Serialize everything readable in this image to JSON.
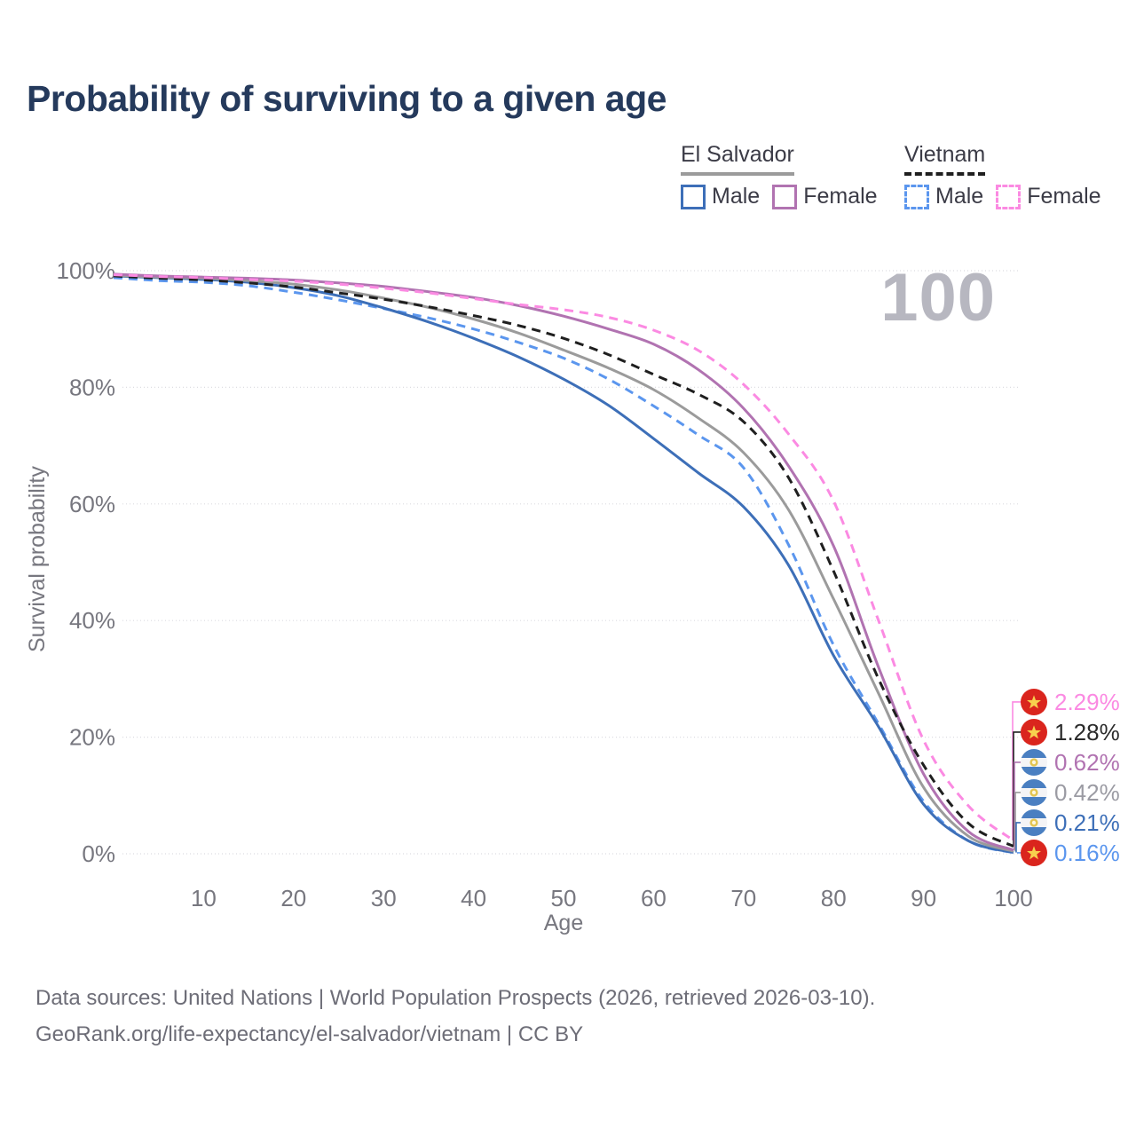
{
  "title": "Probability of surviving to a given age",
  "watermark": "100",
  "legend": {
    "groups": [
      {
        "label": "El Salvador",
        "underline": {
          "color": "#9b9b9b",
          "dashed": false
        },
        "items": [
          {
            "label": "Male",
            "color": "#3d6fb8",
            "dashed": false
          },
          {
            "label": "Female",
            "color": "#b173b1",
            "dashed": false
          }
        ]
      },
      {
        "label": "Vietnam",
        "underline": {
          "color": "#1f1f1f",
          "dashed": true
        },
        "items": [
          {
            "label": "Male",
            "color": "#5b96ee",
            "dashed": true
          },
          {
            "label": "Female",
            "color": "#fb8ae2",
            "dashed": true
          }
        ]
      }
    ]
  },
  "chart_data": {
    "type": "line",
    "title": "Probability of surviving to a given age",
    "xlabel": "Age",
    "ylabel": "Survival probability",
    "xlim": [
      0,
      100
    ],
    "ylim": [
      0,
      100
    ],
    "grid": true,
    "legend_position": "top-right",
    "x": [
      0,
      5,
      10,
      15,
      20,
      25,
      30,
      35,
      40,
      45,
      50,
      55,
      60,
      65,
      70,
      75,
      80,
      85,
      90,
      95,
      100
    ],
    "xticks": [
      {
        "value": 10,
        "label": "10"
      },
      {
        "value": 20,
        "label": "20"
      },
      {
        "value": 30,
        "label": "30"
      },
      {
        "value": 40,
        "label": "40"
      },
      {
        "value": 50,
        "label": "50"
      },
      {
        "value": 60,
        "label": "60"
      },
      {
        "value": 70,
        "label": "70"
      },
      {
        "value": 80,
        "label": "80"
      },
      {
        "value": 90,
        "label": "90"
      },
      {
        "value": 100,
        "label": "100"
      }
    ],
    "yticks": [
      {
        "value": 0,
        "label": "0%"
      },
      {
        "value": 20,
        "label": "20%"
      },
      {
        "value": 40,
        "label": "40%"
      },
      {
        "value": 60,
        "label": "60%"
      },
      {
        "value": 80,
        "label": "80%"
      },
      {
        "value": 100,
        "label": "100%"
      }
    ],
    "series": [
      {
        "name": "Vietnam Female",
        "flag": "vn",
        "dashed": true,
        "color": "#fb8ae2",
        "label_color": "#fb8ae2",
        "end_label": "2.29%",
        "values": [
          99.3,
          99.0,
          98.8,
          98.5,
          98.2,
          97.7,
          97.0,
          96.2,
          95.2,
          94.2,
          93.3,
          92.0,
          89.8,
          86.3,
          80.5,
          72.0,
          60.5,
          40.0,
          19.5,
          8.2,
          2.29
        ]
      },
      {
        "name": "Vietnam Both sexes",
        "flag": "vn",
        "dashed": true,
        "color": "#1f1f1f",
        "label_color": "#2b2b2b",
        "end_label": "1.28%",
        "values": [
          99.1,
          98.7,
          98.4,
          97.9,
          97.2,
          96.2,
          95.1,
          93.8,
          92.3,
          90.6,
          88.4,
          85.6,
          82.2,
          78.8,
          74.1,
          64.5,
          48.5,
          30.0,
          15.2,
          5.2,
          1.28
        ]
      },
      {
        "name": "El Salvador Female",
        "flag": "sv",
        "dashed": false,
        "color": "#b173b1",
        "label_color": "#b173b1",
        "end_label": "0.62%",
        "values": [
          99.4,
          99.1,
          98.9,
          98.7,
          98.4,
          97.9,
          97.3,
          96.4,
          95.4,
          94.0,
          92.2,
          90.0,
          87.4,
          83.0,
          76.4,
          66.5,
          52.8,
          32.0,
          13.7,
          3.8,
          0.62
        ]
      },
      {
        "name": "El Salvador Both sexes",
        "flag": "sv",
        "dashed": false,
        "color": "#9b9b9b",
        "label_color": "#9b9ba3",
        "end_label": "0.42%",
        "values": [
          99.2,
          98.9,
          98.7,
          98.3,
          97.7,
          96.7,
          95.3,
          93.7,
          91.7,
          89.3,
          86.4,
          83.3,
          79.6,
          74.7,
          68.8,
          59.0,
          43.7,
          27.5,
          11.4,
          3.0,
          0.42
        ]
      },
      {
        "name": "El Salvador Male",
        "flag": "sv",
        "dashed": false,
        "color": "#3d6fb8",
        "label_color": "#3d6fb8",
        "end_label": "0.21%",
        "values": [
          99.1,
          98.8,
          98.5,
          98.0,
          97.1,
          95.7,
          93.6,
          91.2,
          88.4,
          85.2,
          81.4,
          76.9,
          71.2,
          65.3,
          59.5,
          49.5,
          34.0,
          21.8,
          8.5,
          2.2,
          0.21
        ]
      },
      {
        "name": "Vietnam Male",
        "flag": "vn",
        "dashed": true,
        "color": "#5b96ee",
        "label_color": "#5b96ee",
        "end_label": "0.16%",
        "values": [
          98.8,
          98.3,
          98.0,
          97.4,
          96.3,
          95.0,
          93.5,
          91.9,
          90.0,
          87.7,
          85.0,
          81.4,
          76.8,
          71.8,
          66.2,
          53.0,
          35.8,
          22.3,
          9.0,
          2.2,
          0.16
        ]
      }
    ],
    "flag_colors": {
      "vn_red": "#da251d",
      "vn_star": "#f7d14e",
      "sv_blue": "#4a7fc1",
      "sv_white": "#f4f4f6",
      "sv_emblem": "#e3c550"
    },
    "grid_color": "#dcdce1",
    "axis_text_color": "#77777f"
  },
  "footer": {
    "line1": "Data sources: United Nations | World Population Prospects (2026, retrieved 2026-03-10).",
    "line2": "GeoRank.org/life-expectancy/el-salvador/vietnam | CC BY"
  }
}
